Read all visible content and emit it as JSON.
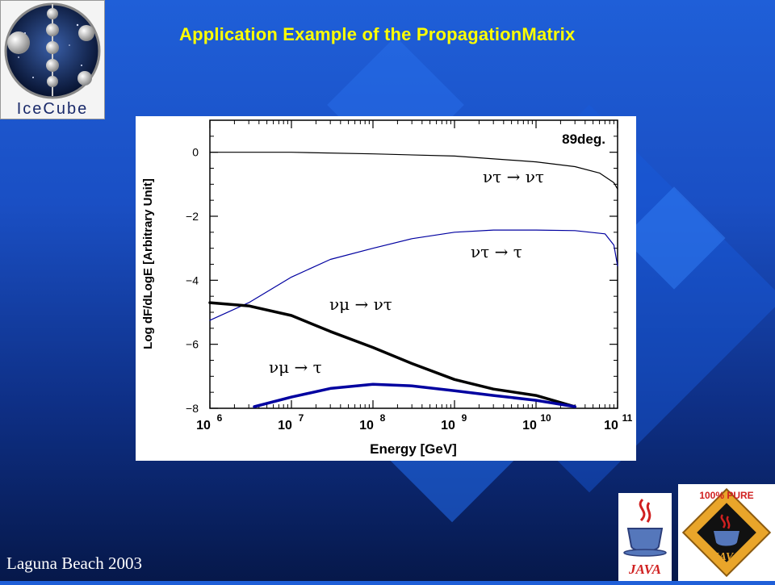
{
  "slide": {
    "title": "Application Example of the PropagationMatrix",
    "footer": "Laguna Beach 2003",
    "logo_text": "IceCube",
    "java_logo_text": "JAVA",
    "java_pure_text": "100% PURE"
  },
  "colors": {
    "title": "#ffff00",
    "tau_curves": "#0000a0",
    "mu_curves": "#000000"
  },
  "chart_data": {
    "type": "line",
    "title": "",
    "annotation": "89deg.",
    "xlabel": "Energy [GeV]",
    "ylabel": "Log dF/dLogE [Arbitrary Unit]",
    "xscale": "log",
    "xlim": [
      1000000,
      100000000000
    ],
    "ylim": [
      -8,
      1
    ],
    "xticks": [
      {
        "base": "10",
        "exp": "6",
        "value": 1000000
      },
      {
        "base": "10",
        "exp": "7",
        "value": 10000000
      },
      {
        "base": "10",
        "exp": "8",
        "value": 100000000
      },
      {
        "base": "10",
        "exp": "9",
        "value": 1000000000
      },
      {
        "base": "10",
        "exp": "10",
        "value": 10000000000
      },
      {
        "base": "10",
        "exp": "11",
        "value": 100000000000
      }
    ],
    "yticks": [
      {
        "label": "0",
        "value": 0
      },
      {
        "label": "−2",
        "value": -2
      },
      {
        "label": "−4",
        "value": -4
      },
      {
        "label": "−6",
        "value": -6
      },
      {
        "label": "−8",
        "value": -8
      }
    ],
    "series": [
      {
        "name": "ντ → ντ",
        "color": "#000000",
        "width": 1.2,
        "label_pos": {
          "x": 100000000000,
          "y": 0
        },
        "x": [
          1000000,
          10000000,
          100000000,
          1000000000,
          10000000000,
          30000000000,
          60000000000,
          90000000000,
          100000000000
        ],
        "y": [
          0.0,
          0.0,
          -0.05,
          -0.12,
          -0.3,
          -0.45,
          -0.65,
          -0.95,
          -1.15
        ]
      },
      {
        "name": "ντ → τ",
        "color": "#0000a0",
        "width": 1.2,
        "x": [
          1000000,
          3000000,
          10000000,
          30000000,
          100000000,
          300000000,
          1000000000,
          3000000000,
          10000000000,
          30000000000,
          70000000000,
          90000000000,
          100000000000
        ],
        "y": [
          -5.25,
          -4.7,
          -3.9,
          -3.35,
          -3.0,
          -2.7,
          -2.5,
          -2.43,
          -2.43,
          -2.45,
          -2.55,
          -2.9,
          -3.55
        ]
      },
      {
        "name": "νμ → ντ",
        "color": "#000000",
        "width": 3.5,
        "x": [
          1000000,
          3000000,
          10000000,
          30000000,
          100000000,
          300000000,
          1000000000,
          3000000000,
          10000000000,
          30000000000
        ],
        "y": [
          -4.7,
          -4.8,
          -5.1,
          -5.6,
          -6.1,
          -6.6,
          -7.1,
          -7.4,
          -7.6,
          -7.95
        ]
      },
      {
        "name": "νμ → τ",
        "color": "#0000a0",
        "width": 3.5,
        "x": [
          3500000,
          10000000,
          30000000,
          100000000,
          300000000,
          1000000000,
          3000000000,
          10000000000,
          30000000000
        ],
        "y": [
          -7.95,
          -7.65,
          -7.38,
          -7.25,
          -7.3,
          -7.45,
          -7.6,
          -7.75,
          -7.95
        ]
      }
    ]
  }
}
